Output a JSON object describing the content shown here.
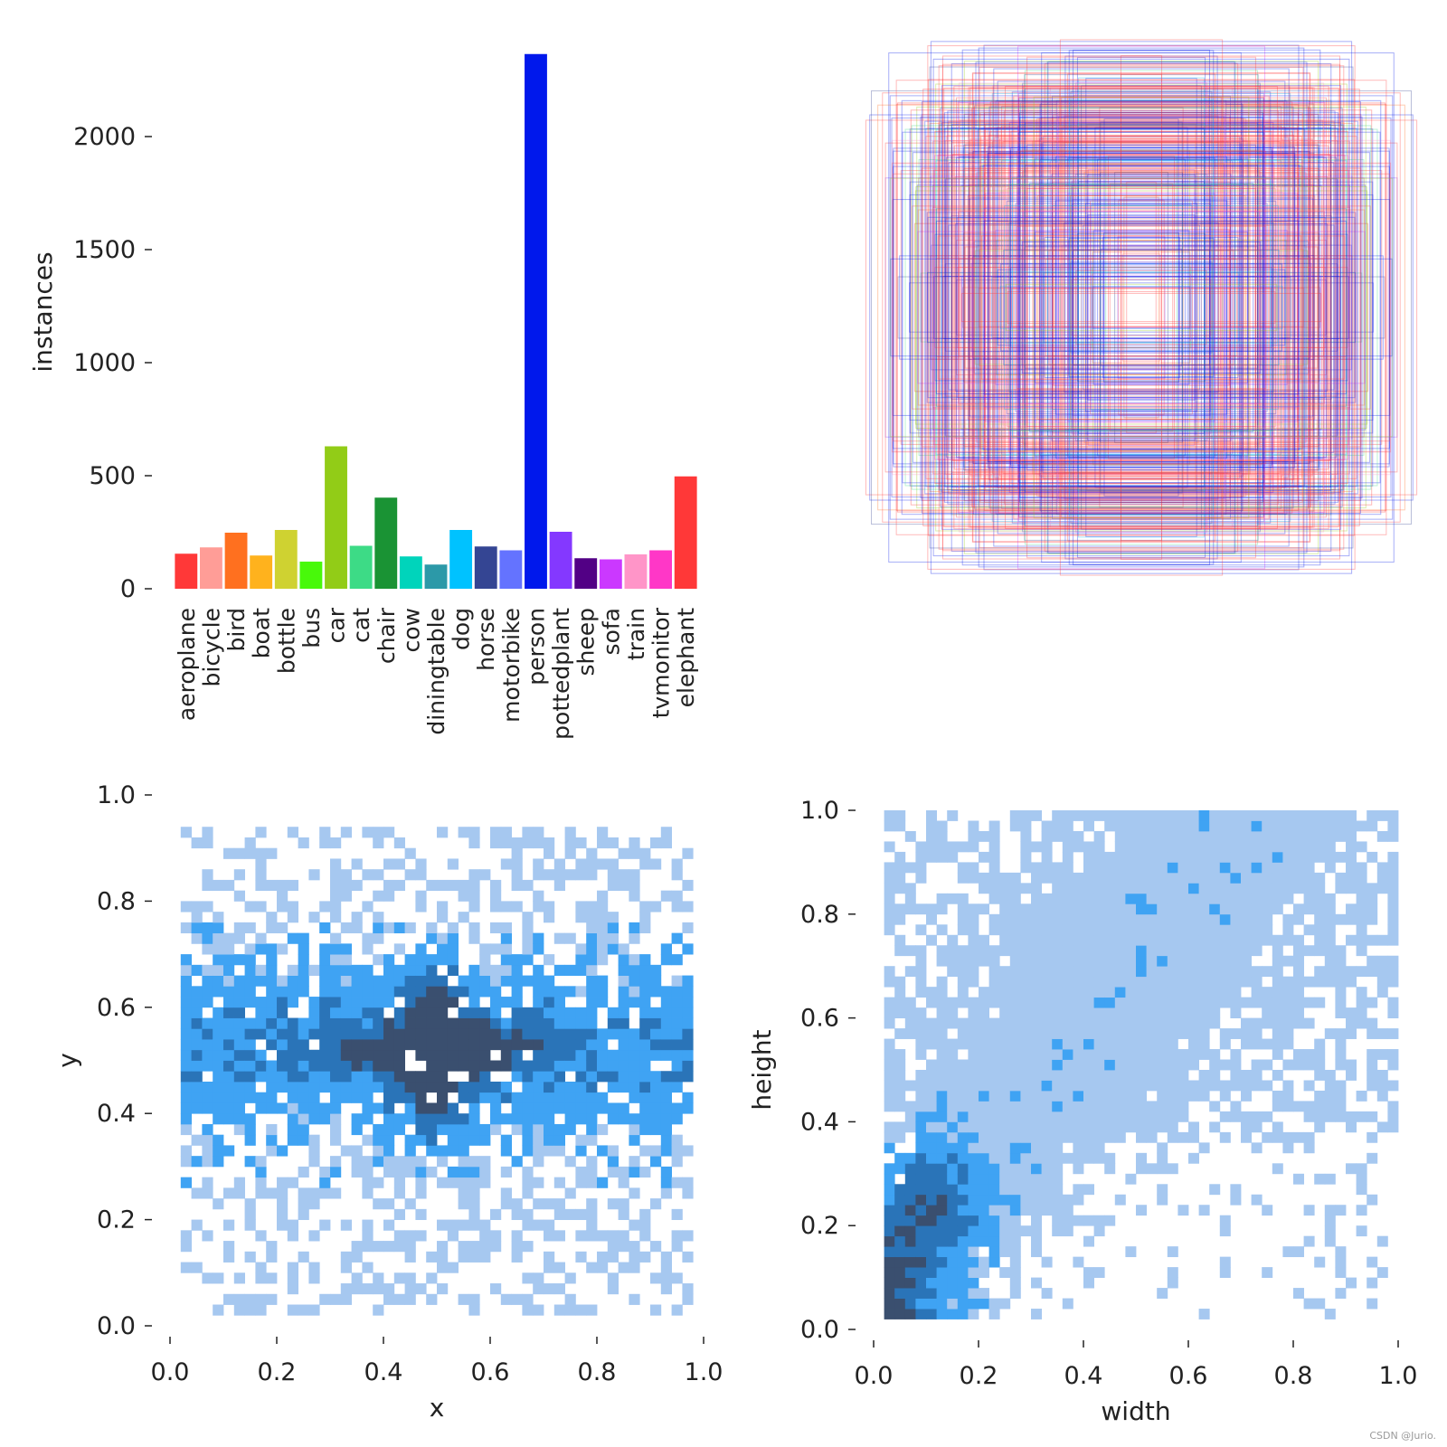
{
  "chart_data": [
    {
      "type": "bar",
      "ylabel": "instances",
      "ylim": [
        0,
        2400
      ],
      "yticks": [
        0,
        500,
        1000,
        1500,
        2000
      ],
      "categories": [
        "aeroplane",
        "bicycle",
        "bird",
        "boat",
        "bottle",
        "bus",
        "car",
        "cat",
        "chair",
        "cow",
        "diningtable",
        "dog",
        "horse",
        "motorbike",
        "person",
        "pottedplant",
        "sheep",
        "sofa",
        "train",
        "tvmonitor",
        "elephant"
      ],
      "values": [
        155,
        183,
        248,
        147,
        260,
        120,
        630,
        190,
        403,
        143,
        107,
        260,
        187,
        170,
        2365,
        252,
        135,
        130,
        152,
        170,
        497
      ],
      "colors": [
        "#ff3838",
        "#ff9d97",
        "#ff701f",
        "#ffb21d",
        "#cfd231",
        "#48f90a",
        "#92cc17",
        "#3ddb86",
        "#1a9334",
        "#00d4bb",
        "#2c99a8",
        "#00c2ff",
        "#344593",
        "#6473ff",
        "#0018ec",
        "#8438ff",
        "#520085",
        "#cb38ff",
        "#ff95c8",
        "#ff37c7",
        "#ff3838"
      ]
    },
    {
      "type": "box_overlay",
      "description_count": 420
    },
    {
      "type": "heatmap",
      "xlabel": "x",
      "ylabel": "y",
      "xlim": [
        0.0,
        1.0
      ],
      "ylim": [
        0.0,
        1.0
      ],
      "xticks": [
        "0.0",
        "0.2",
        "0.4",
        "0.6",
        "0.8",
        "1.0"
      ],
      "yticks": [
        "0.0",
        "0.2",
        "0.4",
        "0.6",
        "0.8",
        "1.0"
      ],
      "bins": 50,
      "center": [
        0.5,
        0.52
      ],
      "colors": [
        "#a6c8f0",
        "#3fa3f3",
        "#2a74b8",
        "#3a4f6f"
      ]
    },
    {
      "type": "heatmap",
      "xlabel": "width",
      "ylabel": "height",
      "xlim": [
        0.0,
        1.0
      ],
      "ylim": [
        0.0,
        1.0
      ],
      "xticks": [
        "0.0",
        "0.2",
        "0.4",
        "0.6",
        "0.8",
        "1.0"
      ],
      "yticks": [
        "0.0",
        "0.2",
        "0.4",
        "0.6",
        "0.8",
        "1.0"
      ],
      "bins": 50,
      "colors": [
        "#a6c8f0",
        "#3fa3f3",
        "#2a74b8",
        "#3a4f6f"
      ]
    }
  ],
  "watermark": "CSDN @Jurio."
}
